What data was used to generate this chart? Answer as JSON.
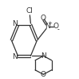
{
  "bg_color": "#ffffff",
  "line_color": "#333333",
  "lw": 0.9,
  "fs": 6.5,
  "dpi": 100,
  "fig_w": 0.99,
  "fig_h": 0.98,
  "xlim": [
    0.0,
    1.0
  ],
  "ylim": [
    0.0,
    1.0
  ]
}
